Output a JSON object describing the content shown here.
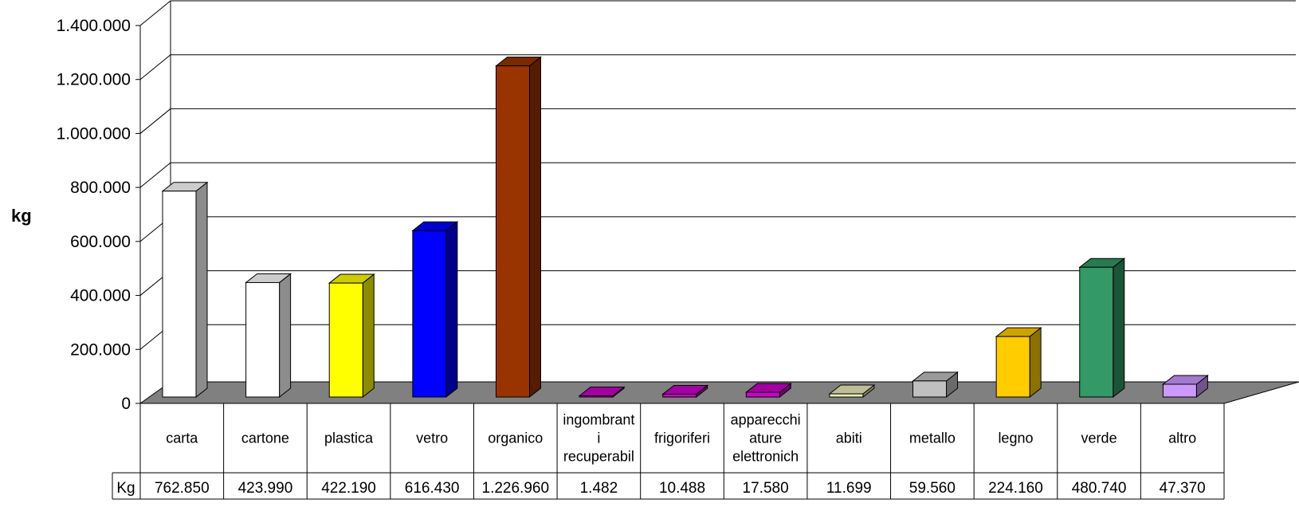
{
  "chart_data": {
    "type": "bar",
    "ylabel": "kg",
    "ylim": [
      0,
      1400000
    ],
    "yticks": [
      "0",
      "200.000",
      "400.000",
      "600.000",
      "800.000",
      "1.000.000",
      "1.200.000",
      "1.400.000"
    ],
    "grid": true,
    "categories": [
      [
        "carta"
      ],
      [
        "cartone"
      ],
      [
        "plastica"
      ],
      [
        "vetro"
      ],
      [
        "organico"
      ],
      [
        "ingombrant",
        "i",
        "recuperabil"
      ],
      [
        "frigoriferi"
      ],
      [
        "apparecchi",
        "ature",
        "elettronich"
      ],
      [
        "abiti"
      ],
      [
        "metallo"
      ],
      [
        "legno"
      ],
      [
        "verde"
      ],
      [
        "altro"
      ]
    ],
    "values": [
      762850,
      423990,
      422190,
      616430,
      1226960,
      1482,
      10488,
      17580,
      11699,
      59560,
      224160,
      480740,
      47370
    ],
    "table": {
      "row_label": "Kg",
      "cells": [
        "762.850",
        "423.990",
        "422.190",
        "616.430",
        "1.226.960",
        "1.482",
        "10.488",
        "17.580",
        "11.699",
        "59.560",
        "224.160",
        "480.740",
        "47.370"
      ]
    },
    "colors": {
      "front": [
        "#ffffff",
        "#ffffff",
        "#ffff00",
        "#0000ff",
        "#993300",
        "#cc00cc",
        "#cc00cc",
        "#cc00cc",
        "#eeeebb",
        "#c0c0c0",
        "#ffcc00",
        "#339966",
        "#cc99ff"
      ],
      "floor": "#808080",
      "grid": "#000000"
    }
  }
}
